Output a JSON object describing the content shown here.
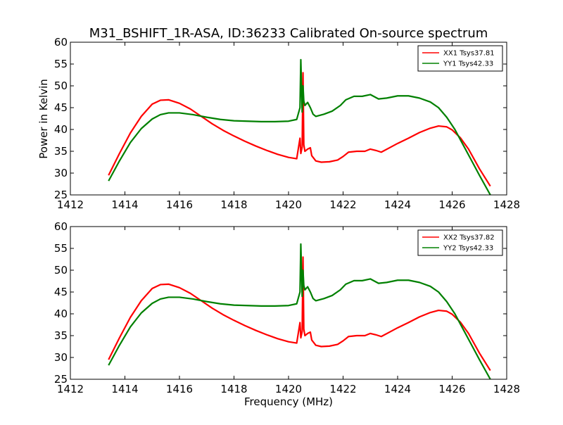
{
  "figure": {
    "title": "M31_BSHIFT_1R-ASA, ID:36233 Calibrated On-source spectrum",
    "xlabel": "Frequency (MHz)",
    "ylabel": "Power in Kelvin"
  },
  "colors": {
    "red": "#ff0000",
    "green": "#008000"
  },
  "chart_data": [
    {
      "type": "line",
      "title": "M31_BSHIFT_1R-ASA, ID:36233 Calibrated On-source spectrum",
      "xlabel": "",
      "ylabel": "Power in Kelvin",
      "xlim": [
        1412,
        1428
      ],
      "ylim": [
        25,
        60
      ],
      "xticks": [
        1412,
        1414,
        1416,
        1418,
        1420,
        1422,
        1424,
        1426,
        1428
      ],
      "yticks": [
        25,
        30,
        35,
        40,
        45,
        50,
        55,
        60
      ],
      "grid": false,
      "legend_position": "top-right",
      "series": [
        {
          "name": "XX1 Tsys37.81",
          "color": "#ff0000",
          "x": [
            1413.4,
            1413.8,
            1414.2,
            1414.6,
            1415.0,
            1415.3,
            1415.6,
            1416.0,
            1416.4,
            1416.8,
            1417.2,
            1417.6,
            1418.0,
            1418.4,
            1418.8,
            1419.2,
            1419.6,
            1420.0,
            1420.3,
            1420.42,
            1420.45,
            1420.5,
            1420.53,
            1420.56,
            1420.6,
            1420.7,
            1420.8,
            1420.85,
            1421.0,
            1421.2,
            1421.5,
            1421.8,
            1422.0,
            1422.2,
            1422.5,
            1422.8,
            1423.0,
            1423.2,
            1423.4,
            1423.7,
            1424.0,
            1424.4,
            1424.8,
            1425.2,
            1425.5,
            1425.8,
            1426.0,
            1426.3,
            1426.6,
            1427.0,
            1427.4
          ],
          "y": [
            29.5,
            34.5,
            39.2,
            43.0,
            45.8,
            46.7,
            46.8,
            46.0,
            44.7,
            43.0,
            41.3,
            39.8,
            38.5,
            37.3,
            36.2,
            35.2,
            34.3,
            33.6,
            33.3,
            38.0,
            34.5,
            36.0,
            53.0,
            36.5,
            35.0,
            35.5,
            35.8,
            34.0,
            32.8,
            32.5,
            32.6,
            33.0,
            33.8,
            34.8,
            35.0,
            35.0,
            35.5,
            35.2,
            34.8,
            35.8,
            36.8,
            38.0,
            39.3,
            40.3,
            40.8,
            40.6,
            39.9,
            38.1,
            35.5,
            31.0,
            27.0
          ]
        },
        {
          "name": "YY1 Tsys42.33",
          "color": "#008000",
          "x": [
            1413.4,
            1413.8,
            1414.2,
            1414.6,
            1415.0,
            1415.3,
            1415.6,
            1416.0,
            1416.5,
            1417.0,
            1417.5,
            1418.0,
            1418.5,
            1419.0,
            1419.5,
            1420.0,
            1420.3,
            1420.42,
            1420.45,
            1420.5,
            1420.53,
            1420.56,
            1420.6,
            1420.7,
            1420.8,
            1420.9,
            1421.0,
            1421.3,
            1421.6,
            1421.9,
            1422.1,
            1422.4,
            1422.7,
            1423.0,
            1423.3,
            1423.6,
            1424.0,
            1424.4,
            1424.8,
            1425.2,
            1425.5,
            1425.8,
            1426.1,
            1426.4,
            1426.7,
            1427.0,
            1427.4
          ],
          "y": [
            28.2,
            32.8,
            37.0,
            40.2,
            42.4,
            43.4,
            43.8,
            43.8,
            43.4,
            42.8,
            42.3,
            42.0,
            41.9,
            41.8,
            41.8,
            41.9,
            42.3,
            45.0,
            56.0,
            44.0,
            50.0,
            46.5,
            45.5,
            46.2,
            45.0,
            43.5,
            43.0,
            43.5,
            44.2,
            45.5,
            46.8,
            47.6,
            47.6,
            48.0,
            47.0,
            47.2,
            47.7,
            47.7,
            47.2,
            46.3,
            45.0,
            42.8,
            40.0,
            36.5,
            33.0,
            29.5,
            25.0
          ]
        }
      ]
    },
    {
      "type": "line",
      "title": "",
      "xlabel": "Frequency (MHz)",
      "ylabel": "",
      "xlim": [
        1412,
        1428
      ],
      "ylim": [
        25,
        60
      ],
      "xticks": [
        1412,
        1414,
        1416,
        1418,
        1420,
        1422,
        1424,
        1426,
        1428
      ],
      "yticks": [
        25,
        30,
        35,
        40,
        45,
        50,
        55,
        60
      ],
      "grid": false,
      "legend_position": "top-right",
      "series": [
        {
          "name": "XX2 Tsys37.82",
          "color": "#ff0000",
          "x": [
            1413.4,
            1413.8,
            1414.2,
            1414.6,
            1415.0,
            1415.3,
            1415.6,
            1416.0,
            1416.4,
            1416.8,
            1417.2,
            1417.6,
            1418.0,
            1418.4,
            1418.8,
            1419.2,
            1419.6,
            1420.0,
            1420.3,
            1420.42,
            1420.45,
            1420.5,
            1420.53,
            1420.56,
            1420.6,
            1420.7,
            1420.8,
            1420.85,
            1421.0,
            1421.2,
            1421.5,
            1421.8,
            1422.0,
            1422.2,
            1422.5,
            1422.8,
            1423.0,
            1423.2,
            1423.4,
            1423.7,
            1424.0,
            1424.4,
            1424.8,
            1425.2,
            1425.5,
            1425.8,
            1426.0,
            1426.3,
            1426.6,
            1427.0,
            1427.4
          ],
          "y": [
            29.5,
            34.5,
            39.2,
            43.0,
            45.8,
            46.7,
            46.8,
            46.0,
            44.7,
            43.0,
            41.3,
            39.8,
            38.5,
            37.3,
            36.2,
            35.2,
            34.3,
            33.6,
            33.3,
            38.0,
            34.5,
            36.0,
            53.0,
            36.5,
            35.0,
            35.5,
            35.8,
            34.0,
            32.8,
            32.5,
            32.6,
            33.0,
            33.8,
            34.8,
            35.0,
            35.0,
            35.5,
            35.2,
            34.8,
            35.8,
            36.8,
            38.0,
            39.3,
            40.3,
            40.8,
            40.6,
            39.9,
            38.1,
            35.5,
            31.0,
            27.0
          ]
        },
        {
          "name": "YY2 Tsys42.33",
          "color": "#008000",
          "x": [
            1413.4,
            1413.8,
            1414.2,
            1414.6,
            1415.0,
            1415.3,
            1415.6,
            1416.0,
            1416.5,
            1417.0,
            1417.5,
            1418.0,
            1418.5,
            1419.0,
            1419.5,
            1420.0,
            1420.3,
            1420.42,
            1420.45,
            1420.5,
            1420.53,
            1420.56,
            1420.6,
            1420.7,
            1420.8,
            1420.9,
            1421.0,
            1421.3,
            1421.6,
            1421.9,
            1422.1,
            1422.4,
            1422.7,
            1423.0,
            1423.3,
            1423.6,
            1424.0,
            1424.4,
            1424.8,
            1425.2,
            1425.5,
            1425.8,
            1426.1,
            1426.4,
            1426.7,
            1427.0,
            1427.4
          ],
          "y": [
            28.2,
            32.8,
            37.0,
            40.2,
            42.4,
            43.4,
            43.8,
            43.8,
            43.4,
            42.8,
            42.3,
            42.0,
            41.9,
            41.8,
            41.8,
            41.9,
            42.3,
            45.0,
            56.0,
            44.0,
            50.0,
            46.5,
            45.5,
            46.2,
            45.0,
            43.5,
            43.0,
            43.5,
            44.2,
            45.5,
            46.8,
            47.6,
            47.6,
            48.0,
            47.0,
            47.2,
            47.7,
            47.7,
            47.2,
            46.3,
            45.0,
            42.8,
            40.0,
            36.5,
            33.0,
            29.5,
            25.0
          ]
        }
      ]
    }
  ]
}
